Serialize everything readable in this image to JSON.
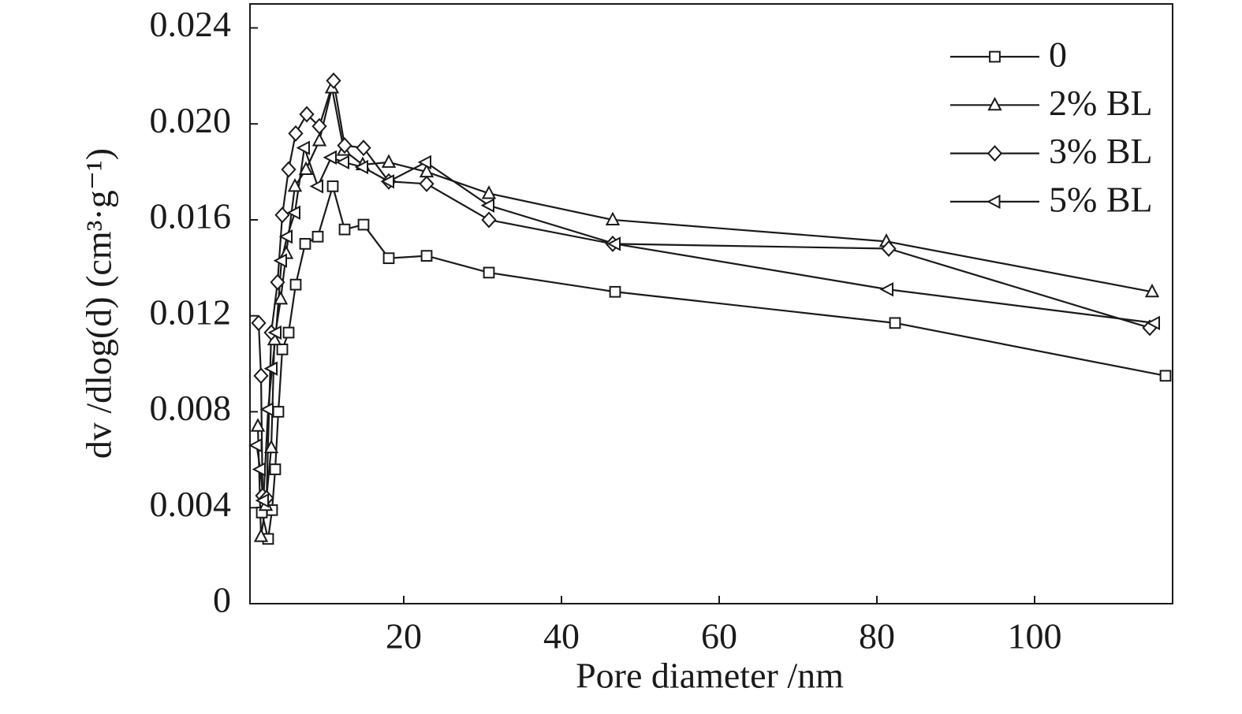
{
  "chart_data": {
    "type": "line",
    "xlabel": "Pore diameter /nm",
    "ylabel": "dv /dlog(d) (cm³·g⁻¹)",
    "xlim": [
      0.5,
      117.5
    ],
    "ylim": [
      0,
      0.025
    ],
    "xticks": [
      20,
      40,
      60,
      80,
      100
    ],
    "yticks": [
      0,
      0.004,
      0.008,
      0.012,
      0.016,
      {
        "value": 0.02,
        "label": "0.020"
      },
      0.024
    ],
    "legend": "upper right",
    "series": [
      {
        "name": "0",
        "color": "#1a1a1a",
        "marker": "square",
        "x": [
          2.0,
          2.8,
          3.3,
          3.7,
          4.1,
          4.6,
          5.4,
          6.3,
          7.5,
          9.1,
          11.0,
          12.5,
          14.9,
          18.1,
          22.9,
          30.8,
          46.8,
          82.3,
          116.6
        ],
        "values": [
          0.0038,
          0.0027,
          0.0039,
          0.0056,
          0.008,
          0.0106,
          0.0113,
          0.0133,
          0.015,
          0.0153,
          0.0174,
          0.0156,
          0.0158,
          0.0144,
          0.0145,
          0.0138,
          0.013,
          0.0117,
          0.0095
        ]
      },
      {
        "name": "2% BL",
        "color": "#1a1a1a",
        "marker": "triangle",
        "x": [
          1.5,
          1.9,
          2.5,
          3.2,
          3.6,
          4.4,
          5.1,
          6.2,
          7.6,
          9.3,
          10.9,
          12.4,
          14.8,
          18.1,
          22.9,
          30.8,
          46.5,
          81.2,
          114.9
        ],
        "values": [
          0.0074,
          0.0028,
          0.0041,
          0.0065,
          0.011,
          0.0127,
          0.0146,
          0.0174,
          0.0181,
          0.0193,
          0.0215,
          0.0189,
          0.0183,
          0.0184,
          0.018,
          0.0171,
          0.016,
          0.0151,
          0.013
        ]
      },
      {
        "name": "3% BL",
        "color": "#1a1a1a",
        "marker": "diamond",
        "x": [
          1.6,
          1.9,
          2.1,
          2.6,
          3.2,
          4.0,
          4.6,
          5.4,
          6.3,
          7.7,
          9.3,
          11.1,
          12.5,
          14.9,
          18.1,
          22.9,
          30.8,
          46.5,
          81.5,
          114.6
        ],
        "values": [
          0.0117,
          0.0095,
          0.0045,
          0.0044,
          0.0113,
          0.0134,
          0.0162,
          0.0181,
          0.0196,
          0.0204,
          0.0199,
          0.0218,
          0.0191,
          0.019,
          0.0176,
          0.0175,
          0.016,
          0.015,
          0.0148,
          0.0115
        ]
      },
      {
        "name": "5% BL",
        "color": "#1a1a1a",
        "marker": "triangle-left",
        "x": [
          1.35,
          1.8,
          2.2,
          2.8,
          3.3,
          3.8,
          4.5,
          5.2,
          6.2,
          7.4,
          9.1,
          10.8,
          12.4,
          14.8,
          18.1,
          22.8,
          30.8,
          46.8,
          81.4,
          115.2
        ],
        "values": [
          0.0066,
          0.0056,
          0.0043,
          0.0081,
          0.0098,
          0.0113,
          0.0143,
          0.0153,
          0.0163,
          0.019,
          0.0174,
          0.0186,
          0.0184,
          0.0182,
          0.0176,
          0.0184,
          0.0166,
          0.015,
          0.0131,
          0.0117
        ]
      }
    ]
  }
}
